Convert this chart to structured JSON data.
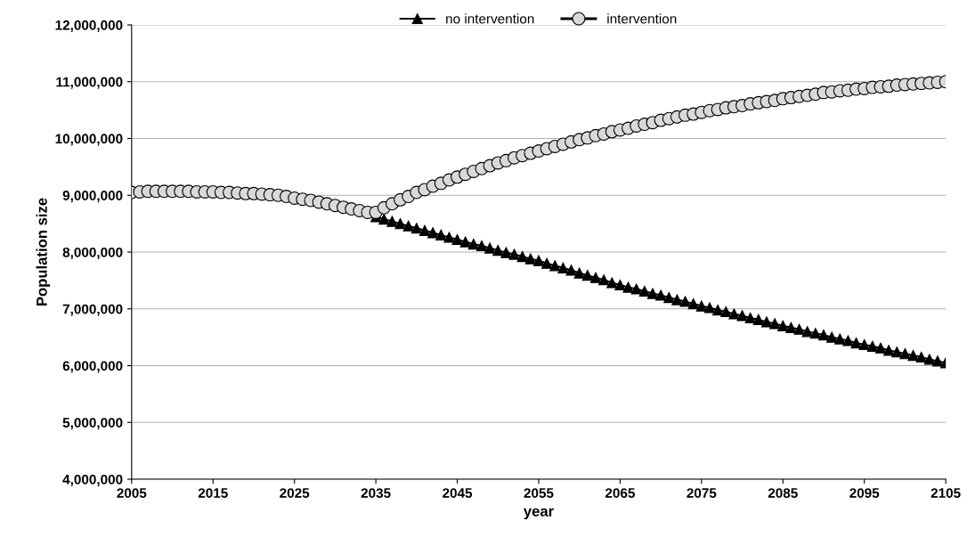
{
  "chart_data": {
    "type": "line",
    "xlabel": "year",
    "ylabel": "Population size",
    "xlim": [
      2005,
      2105
    ],
    "xticks": [
      2005,
      2015,
      2025,
      2035,
      2045,
      2055,
      2065,
      2075,
      2085,
      2095,
      2105
    ],
    "ylim": [
      4000000,
      12000000
    ],
    "yticks": [
      {
        "value": 4000000,
        "label": "4,000,000"
      },
      {
        "value": 5000000,
        "label": "5,000,000"
      },
      {
        "value": 6000000,
        "label": "6,000,000"
      },
      {
        "value": 7000000,
        "label": "7,000,000"
      },
      {
        "value": 8000000,
        "label": "8,000,000"
      },
      {
        "value": 9000000,
        "label": "9,000,000"
      },
      {
        "value": 10000000,
        "label": "10,000,000"
      },
      {
        "value": 11000000,
        "label": "11,000,000"
      },
      {
        "value": 12000000,
        "label": "12,000,000"
      }
    ],
    "grid": "y",
    "legend": "top",
    "line_style": "solid",
    "series": [
      {
        "name": "no intervention",
        "color": "#000000",
        "marker": "triangle",
        "x": [
          2035,
          2036,
          2037,
          2038,
          2039,
          2040,
          2041,
          2042,
          2043,
          2044,
          2045,
          2046,
          2047,
          2048,
          2049,
          2050,
          2051,
          2052,
          2053,
          2054,
          2055,
          2056,
          2057,
          2058,
          2059,
          2060,
          2061,
          2062,
          2063,
          2064,
          2065,
          2066,
          2067,
          2068,
          2069,
          2070,
          2071,
          2072,
          2073,
          2074,
          2075,
          2076,
          2077,
          2078,
          2079,
          2080,
          2081,
          2082,
          2083,
          2084,
          2085,
          2086,
          2087,
          2088,
          2089,
          2090,
          2091,
          2092,
          2093,
          2094,
          2095,
          2096,
          2097,
          2098,
          2099,
          2100,
          2101,
          2102,
          2103,
          2104,
          2105
        ],
        "values": [
          8620000,
          8580000,
          8540000,
          8500000,
          8460000,
          8420000,
          8380000,
          8340000,
          8300000,
          8260000,
          8220000,
          8180000,
          8140000,
          8110000,
          8070000,
          8030000,
          7990000,
          7960000,
          7920000,
          7880000,
          7850000,
          7800000,
          7760000,
          7720000,
          7680000,
          7630000,
          7590000,
          7550000,
          7510000,
          7460000,
          7420000,
          7380000,
          7350000,
          7310000,
          7270000,
          7240000,
          7200000,
          7160000,
          7130000,
          7090000,
          7050000,
          7020000,
          6980000,
          6950000,
          6910000,
          6880000,
          6840000,
          6810000,
          6770000,
          6740000,
          6700000,
          6670000,
          6640000,
          6600000,
          6570000,
          6540000,
          6500000,
          6470000,
          6440000,
          6400000,
          6370000,
          6340000,
          6310000,
          6270000,
          6240000,
          6210000,
          6180000,
          6150000,
          6110000,
          6080000,
          6050000
        ]
      },
      {
        "name": "intervention",
        "type": "scatter",
        "color": "#d9d9d9",
        "marker": "circle",
        "x": [
          2005,
          2006,
          2007,
          2008,
          2009,
          2010,
          2011,
          2012,
          2013,
          2014,
          2015,
          2016,
          2017,
          2018,
          2019,
          2020,
          2021,
          2022,
          2023,
          2024,
          2025,
          2026,
          2027,
          2028,
          2029,
          2030,
          2031,
          2032,
          2033,
          2034,
          2035,
          2036,
          2037,
          2038,
          2039,
          2040,
          2041,
          2042,
          2043,
          2044,
          2045,
          2046,
          2047,
          2048,
          2049,
          2050,
          2051,
          2052,
          2053,
          2054,
          2055,
          2056,
          2057,
          2058,
          2059,
          2060,
          2061,
          2062,
          2063,
          2064,
          2065,
          2066,
          2067,
          2068,
          2069,
          2070,
          2071,
          2072,
          2073,
          2074,
          2075,
          2076,
          2077,
          2078,
          2079,
          2080,
          2081,
          2082,
          2083,
          2084,
          2085,
          2086,
          2087,
          2088,
          2089,
          2090,
          2091,
          2092,
          2093,
          2094,
          2095,
          2096,
          2097,
          2098,
          2099,
          2100,
          2101,
          2102,
          2103,
          2104,
          2105
        ],
        "values": [
          9050000,
          9060000,
          9070000,
          9070000,
          9070000,
          9070000,
          9070000,
          9070000,
          9060000,
          9060000,
          9060000,
          9050000,
          9050000,
          9040000,
          9030000,
          9030000,
          9020000,
          9010000,
          9000000,
          8980000,
          8950000,
          8930000,
          8910000,
          8880000,
          8850000,
          8820000,
          8790000,
          8760000,
          8730000,
          8700000,
          8700000,
          8780000,
          8850000,
          8920000,
          8980000,
          9050000,
          9100000,
          9160000,
          9210000,
          9270000,
          9320000,
          9370000,
          9420000,
          9470000,
          9520000,
          9570000,
          9610000,
          9660000,
          9700000,
          9740000,
          9780000,
          9820000,
          9860000,
          9900000,
          9940000,
          9980000,
          10010000,
          10050000,
          10080000,
          10120000,
          10150000,
          10180000,
          10220000,
          10250000,
          10280000,
          10320000,
          10350000,
          10380000,
          10410000,
          10430000,
          10460000,
          10490000,
          10510000,
          10540000,
          10560000,
          10580000,
          10610000,
          10630000,
          10650000,
          10670000,
          10700000,
          10720000,
          10740000,
          10760000,
          10780000,
          10810000,
          10820000,
          10840000,
          10850000,
          10870000,
          10880000,
          10900000,
          10910000,
          10920000,
          10940000,
          10950000,
          10960000,
          10970000,
          10980000,
          10990000,
          11000000
        ]
      }
    ]
  }
}
